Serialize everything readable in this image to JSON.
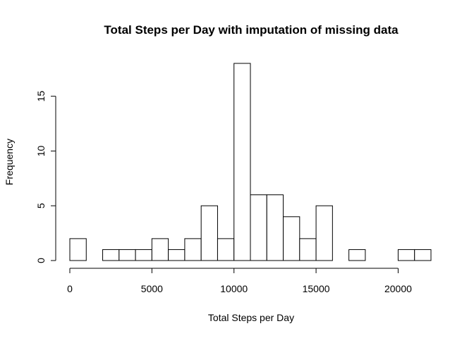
{
  "chart_data": {
    "type": "bar",
    "title": "Total Steps per Day with imputation of missing data",
    "xlabel": "Total Steps per Day",
    "ylabel": "Frequency",
    "bin_width": 1000,
    "bins_start": [
      0,
      1000,
      2000,
      3000,
      4000,
      5000,
      6000,
      7000,
      8000,
      9000,
      10000,
      11000,
      12000,
      13000,
      14000,
      15000,
      16000,
      17000,
      18000,
      19000,
      20000,
      21000
    ],
    "values": [
      2,
      0,
      1,
      1,
      1,
      2,
      1,
      2,
      5,
      2,
      18,
      6,
      6,
      4,
      2,
      5,
      0,
      1,
      0,
      0,
      1,
      1
    ],
    "xlim": [
      0,
      22000
    ],
    "ylim": [
      0,
      18
    ],
    "x_ticks": [
      0,
      5000,
      10000,
      15000,
      20000
    ],
    "x_tick_labels": [
      "0",
      "5000",
      "10000",
      "15000",
      "20000"
    ],
    "y_ticks": [
      0,
      5,
      10,
      15
    ],
    "y_tick_labels": [
      "0",
      "5",
      "10",
      "15"
    ],
    "grid": false,
    "colors": {
      "bar_fill": "#ffffff",
      "bar_stroke": "#000000"
    }
  }
}
